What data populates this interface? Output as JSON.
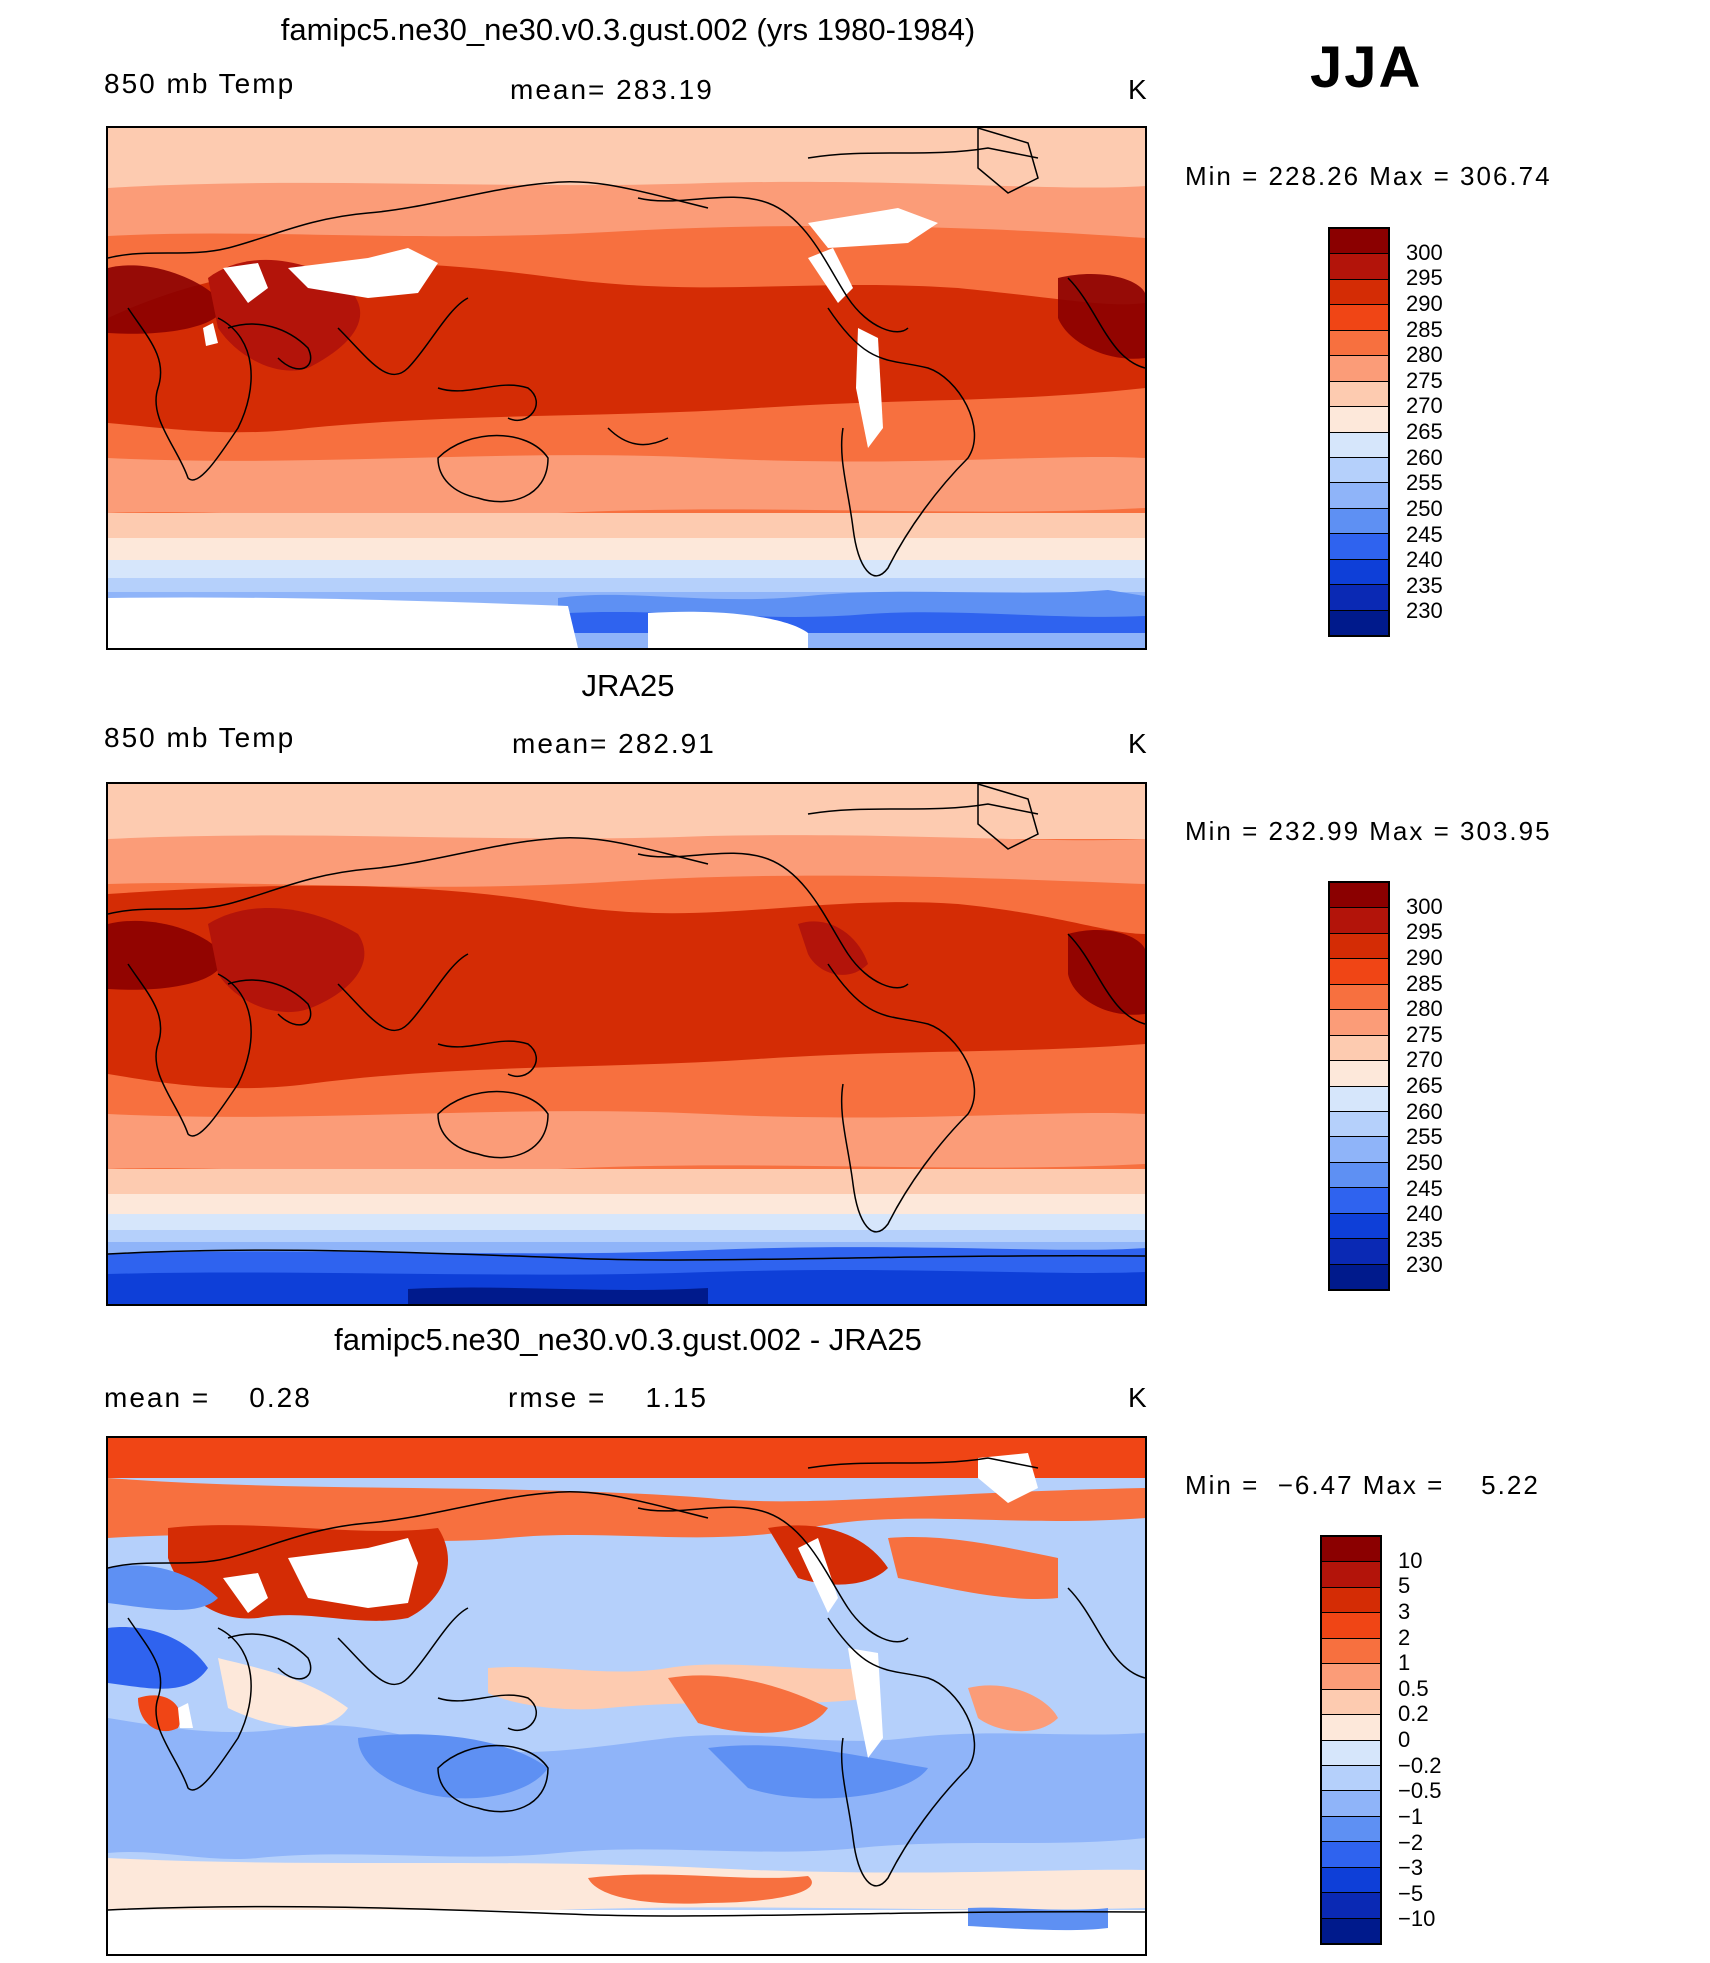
{
  "season": "JJA",
  "panel1": {
    "title": "famipc5.ne30_ne30.v0.3.gust.002 (yrs 1980-1984)",
    "left": "850 mb Temp",
    "center": "mean= 283.19",
    "unit": "K",
    "minmax": "Min = 228.26 Max = 306.74"
  },
  "panel2": {
    "title": "JRA25",
    "left": "850 mb Temp",
    "center": "mean= 282.91",
    "unit": "K",
    "minmax": "Min = 232.99 Max = 303.95"
  },
  "panel3": {
    "title": "famipc5.ne30_ne30.v0.3.gust.002 - JRA25",
    "left": "mean =    0.28",
    "center": "rmse =    1.15",
    "unit": "K",
    "minmax": "Min =  −6.47 Max =    5.22"
  },
  "colorbar_temp": {
    "labels": [
      "300",
      "295",
      "290",
      "285",
      "280",
      "275",
      "270",
      "265",
      "260",
      "255",
      "250",
      "245",
      "240",
      "235",
      "230"
    ],
    "colors": [
      "#8b0000",
      "#b3140a",
      "#d42c05",
      "#f04515",
      "#f7703f",
      "#fb9c78",
      "#fdcbb0",
      "#fde8da",
      "#d6e6fb",
      "#b5d0fb",
      "#8fb4f9",
      "#5e90f3",
      "#2f63ef",
      "#0e3fd8",
      "#0a29b4",
      "#001a8c"
    ]
  },
  "colorbar_diff": {
    "labels": [
      "10",
      "5",
      "3",
      "2",
      "1",
      "0.5",
      "0.2",
      "0",
      "−0.2",
      "−0.5",
      "−1",
      "−2",
      "−3",
      "−5",
      "−10"
    ],
    "colors": [
      "#8b0000",
      "#b3140a",
      "#d42c05",
      "#f04515",
      "#f7703f",
      "#fb9c78",
      "#fdcbb0",
      "#fde8da",
      "#d6e6fb",
      "#b5d0fb",
      "#8fb4f9",
      "#5e90f3",
      "#2f63ef",
      "#0e3fd8",
      "#0a29b4",
      "#001a8c"
    ]
  }
}
